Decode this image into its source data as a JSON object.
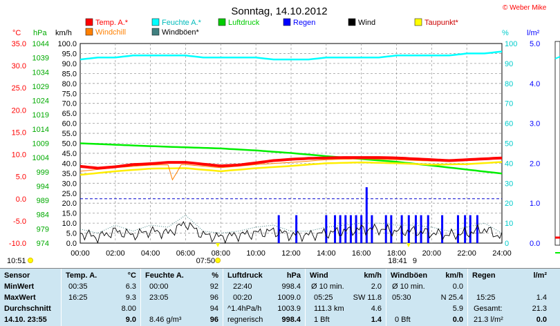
{
  "header": {
    "title": "Sonntag, 14.10.2012",
    "copyright": "© Weber Mike"
  },
  "axis_headers": {
    "celsius": "°C",
    "hpa": "hPa",
    "kmh": "km/h",
    "percent": "%",
    "lm2": "l/m²"
  },
  "legend": [
    {
      "label": "Temp. A.*",
      "color": "#ff0000"
    },
    {
      "label": "Feuchte A.*",
      "color": "#00ffff"
    },
    {
      "label": "Luftdruck",
      "color": "#00cc00"
    },
    {
      "label": "Regen",
      "color": "#0000ff"
    },
    {
      "label": "Wind",
      "color": "#000000"
    },
    {
      "label": "Taupunkt*",
      "color": "#ffff00"
    },
    {
      "label": "Windchill",
      "color": "#ff8000"
    },
    {
      "label": "Windböen*",
      "color": "#408080"
    }
  ],
  "markers": {
    "sunrise": "07:50",
    "sunset": "18:41",
    "left_time": "10:51",
    "moon_digit": "9"
  },
  "chart_data": {
    "type": "line",
    "x_ticks": [
      "00:00",
      "02:00",
      "04:00",
      "06:00",
      "08:00",
      "10:00",
      "12:00",
      "14:00",
      "16:00",
      "18:00",
      "20:00",
      "22:00",
      "24:00"
    ],
    "axes": {
      "celsius": {
        "ticks": [
          "35.0",
          "30.0",
          "25.0",
          "20.0",
          "15.0",
          "10.0",
          "5.0",
          "0.0",
          "-5.0",
          "-10.0"
        ],
        "range": [
          -10,
          35
        ]
      },
      "hpa": {
        "ticks": [
          "1044",
          "1039",
          "1034",
          "1029",
          "1024",
          "1019",
          "1014",
          "1009",
          "1004",
          "999",
          "994",
          "989",
          "984",
          "979",
          "974"
        ],
        "range": [
          974,
          1044
        ]
      },
      "kmh": {
        "ticks": [
          "100.0",
          "95.0",
          "90.0",
          "85.0",
          "80.0",
          "75.0",
          "70.0",
          "65.0",
          "60.0",
          "55.0",
          "50.0",
          "45.0",
          "40.0",
          "35.0",
          "30.0",
          "25.0",
          "20.0",
          "15.0",
          "10.0",
          "5.0",
          "0.0"
        ],
        "range": [
          0,
          100
        ]
      },
      "percent": {
        "ticks": [
          "100",
          "90",
          "80",
          "70",
          "60",
          "50",
          "40",
          "30",
          "20",
          "10",
          "0"
        ],
        "range": [
          0,
          100
        ]
      },
      "lm2": {
        "ticks": [
          "5.0",
          "4.0",
          "3.0",
          "2.0",
          "1.0",
          "0.0"
        ],
        "range": [
          0,
          5
        ]
      }
    },
    "series": [
      {
        "name": "Temp. A.*",
        "unit": "°C",
        "x": [
          0,
          1,
          2,
          3,
          4,
          5,
          6,
          7,
          8,
          9,
          10,
          11,
          12,
          13,
          14,
          15,
          16,
          17,
          18,
          19,
          20,
          21,
          22,
          23,
          24
        ],
        "values": [
          7.3,
          6.9,
          7.2,
          7.7,
          7.9,
          8.2,
          8.2,
          7.8,
          7.4,
          7.6,
          8.1,
          8.6,
          8.9,
          9.1,
          9.2,
          9.3,
          9.3,
          9.3,
          9.2,
          9.0,
          8.8,
          8.6,
          8.8,
          9.0,
          9.2
        ]
      },
      {
        "name": "Feuchte A.*",
        "unit": "%",
        "x": [
          0,
          1,
          2,
          3,
          4,
          5,
          6,
          7,
          8,
          9,
          10,
          11,
          12,
          13,
          14,
          15,
          16,
          17,
          18,
          19,
          20,
          21,
          22,
          23,
          24
        ],
        "values": [
          92,
          93,
          93,
          94,
          94,
          94,
          94,
          93,
          93,
          93,
          93,
          92,
          92,
          92,
          93,
          93,
          93,
          93,
          94,
          94,
          94,
          94,
          95,
          95,
          96
        ]
      },
      {
        "name": "Luftdruck",
        "unit": "hPa",
        "x": [
          0,
          2,
          4,
          6,
          8,
          10,
          12,
          14,
          16,
          18,
          20,
          22,
          24
        ],
        "values": [
          1009.0,
          1008.5,
          1008.0,
          1007.6,
          1007.2,
          1006.5,
          1005.6,
          1004.5,
          1003.5,
          1002.5,
          1001.2,
          999.8,
          998.4
        ]
      },
      {
        "name": "Taupunkt*",
        "unit": "°C",
        "x": [
          0,
          2,
          4,
          6,
          8,
          10,
          12,
          14,
          16,
          18,
          20,
          22,
          24
        ],
        "values": [
          5.4,
          6.2,
          6.8,
          6.9,
          6.2,
          6.9,
          7.4,
          8.0,
          8.2,
          8.0,
          7.7,
          7.8,
          8.3
        ]
      },
      {
        "name": "Wind",
        "unit": "km/h",
        "x": [
          0,
          1,
          2,
          3,
          4,
          5,
          6,
          7,
          8,
          9,
          10,
          11,
          12,
          13,
          14,
          15,
          16,
          17,
          18,
          19,
          20,
          21,
          22,
          23,
          24
        ],
        "values": [
          5,
          3,
          6,
          4,
          6,
          5,
          10,
          4,
          3,
          4,
          5,
          6,
          4,
          4,
          5,
          6,
          7,
          7,
          6,
          6,
          5,
          4,
          5,
          7,
          3
        ]
      },
      {
        "name": "Windböen*",
        "unit": "km/h",
        "x": [
          0,
          1,
          2,
          3,
          4,
          5,
          6,
          7,
          8,
          9,
          10,
          11,
          12,
          13,
          14,
          15,
          16,
          17,
          18,
          19,
          20,
          21,
          22,
          23,
          24
        ],
        "values": [
          7,
          5,
          9,
          6,
          9,
          8,
          14,
          6,
          5,
          6,
          8,
          9,
          6,
          6,
          8,
          9,
          10,
          10,
          9,
          9,
          8,
          6,
          8,
          10,
          5
        ]
      },
      {
        "name": "Regen",
        "unit": "l/m²",
        "x": [
          11.3,
          12.3,
          14.0,
          14.5,
          14.8,
          15.1,
          15.4,
          15.7,
          16.0,
          16.3,
          16.6,
          17.4,
          17.7,
          18.3,
          18.7,
          19.1,
          19.4,
          19.8,
          20.6,
          21.5,
          21.9,
          22.2,
          22.6
        ],
        "values": [
          0.7,
          0.7,
          0.7,
          0.7,
          0.7,
          0.7,
          0.7,
          0.7,
          0.7,
          1.4,
          0.7,
          0.7,
          0.7,
          0.7,
          0.7,
          0.7,
          0.7,
          0.7,
          0.7,
          0.7,
          0.7,
          0.7,
          0.7
        ]
      }
    ]
  },
  "table": {
    "sensor_col": {
      "header": "Sensor",
      "rows": [
        "MinWert",
        "MaxWert",
        "Durchschnitt",
        "14.10. 23:55"
      ]
    },
    "temp": {
      "header": "Temp. A.",
      "unit": "°C",
      "rows": [
        [
          "00:35",
          "6.3"
        ],
        [
          "16:25",
          "9.3"
        ],
        [
          "",
          "8.00"
        ],
        [
          "",
          "9.0"
        ]
      ]
    },
    "humidity": {
      "header": "Feuchte A.",
      "unit": "%",
      "rows": [
        [
          "00:00",
          "92"
        ],
        [
          "23:05",
          "96"
        ],
        [
          "",
          "94"
        ],
        [
          "8.46 g/m³",
          "96"
        ]
      ]
    },
    "pressure": {
      "header": "Luftdruck",
      "unit": "hPa",
      "rows": [
        [
          "22:40",
          "998.4"
        ],
        [
          "00:20",
          "1009.0"
        ],
        [
          "^1.4hPa/h",
          "1003.9"
        ],
        [
          "regnerisch",
          "998.4"
        ]
      ]
    },
    "wind": {
      "header": "Wind",
      "unit": "km/h",
      "rows": [
        [
          "Ø 10 min.",
          "2.0"
        ],
        [
          "05:25",
          "SW 11.8"
        ],
        [
          "111.3 km",
          "4.6"
        ],
        [
          "1 Bft",
          "1.4"
        ]
      ]
    },
    "gusts": {
      "header": "Windböen",
      "unit": "km/h",
      "rows": [
        [
          "Ø 10 min.",
          "0.0"
        ],
        [
          "05:30",
          "N 25.4"
        ],
        [
          "",
          "5.9"
        ],
        [
          "0 Bft",
          "0.0"
        ]
      ]
    },
    "rain": {
      "header": "Regen",
      "unit": "l/m²",
      "rows": [
        [
          "",
          ""
        ],
        [
          "15:25",
          "1.4"
        ],
        [
          "Gesamt:",
          "21.3"
        ],
        [
          "21.3 l/m²",
          "0.0"
        ]
      ]
    }
  }
}
